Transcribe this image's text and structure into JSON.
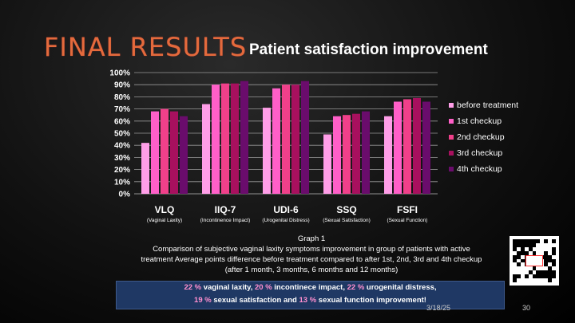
{
  "slide": {
    "heading": "FINAL RESULTS",
    "subheading": "Patient satisfaction improvement",
    "caption": [
      "Graph 1",
      "Comparison of subjective vaginal laxity symptoms improvement in group of patients with active",
      "treatment Average points difference before treatment compared to after 1st, 2nd, 3rd and 4th checkup",
      "(after 1 month, 3 months, 6 months and 12 months)"
    ],
    "summary": {
      "line1": [
        {
          "pct": "22 %",
          "text": " vaginal laxity, "
        },
        {
          "pct": "20 %",
          "text": " incontinece impact, "
        },
        {
          "pct": "22 %",
          "text": " urogenital distress,"
        }
      ],
      "line2": [
        {
          "pct": "19 %",
          "text": " sexual satisfaction and "
        },
        {
          "pct": "13 %",
          "text": " sexual function improvement!"
        }
      ]
    },
    "footer_date": "3/18/25",
    "page_number": "30"
  },
  "chart_data": {
    "type": "bar",
    "categories": [
      "VLQ",
      "IIQ-7",
      "UDI-6",
      "SSQ",
      "FSFI"
    ],
    "category_sublabels": [
      "(Vaginal Laxity)",
      "(Incontinence Impact)",
      "(Urogenital Distress)",
      "(Sexual Satisfaction)",
      "(Sexual Function)"
    ],
    "series": [
      {
        "name": "before treatment",
        "color": "#ff9ee8",
        "values": [
          42,
          74,
          71,
          49,
          64
        ]
      },
      {
        "name": "1st checkup",
        "color": "#ff5fc8",
        "values": [
          68,
          90,
          87,
          64,
          76
        ]
      },
      {
        "name": "2nd checkup",
        "color": "#f0408a",
        "values": [
          70,
          91,
          90,
          65,
          78
        ]
      },
      {
        "name": "3rd checkup",
        "color": "#a8105e",
        "values": [
          68,
          91,
          90,
          66,
          79
        ]
      },
      {
        "name": "4th checkup",
        "color": "#6a0c6c",
        "values": [
          64,
          93,
          93,
          68,
          76
        ]
      }
    ],
    "yticks": [
      "0%",
      "10%",
      "20%",
      "30%",
      "40%",
      "50%",
      "60%",
      "70%",
      "80%",
      "90%",
      "100%"
    ],
    "ylim": [
      0,
      100
    ],
    "grid": true,
    "legend_position": "right"
  }
}
